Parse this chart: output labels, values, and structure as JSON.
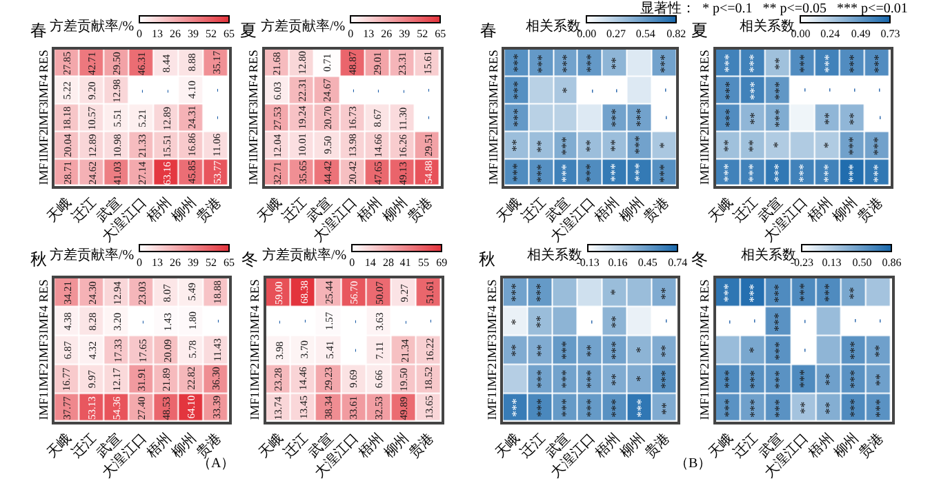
{
  "chart_data": [
    {
      "type": "heatmap",
      "title": "春",
      "clabel": "方差贡献率/%",
      "categories": [
        "天峨",
        "迁江",
        "武宣",
        "大湟江口",
        "梧州",
        "柳州",
        "贵港"
      ],
      "y_categories": [
        "RES",
        "IMF4",
        "IMF3",
        "IMF2",
        "IMF1"
      ],
      "clim": [
        0,
        65
      ],
      "cticks": [
        0,
        13,
        26,
        39,
        52,
        65
      ],
      "cells": [
        [
          27.85,
          42.71,
          29.5,
          46.31,
          8.44,
          8.88,
          35.17
        ],
        [
          5.22,
          9.2,
          12.98,
          null,
          null,
          4.1,
          null
        ],
        [
          18.18,
          10.57,
          5.51,
          5.21,
          12.89,
          24.31,
          null
        ],
        [
          20.04,
          12.89,
          10.98,
          21.33,
          15.51,
          16.86,
          11.06
        ],
        [
          28.71,
          24.62,
          41.03,
          27.14,
          63.16,
          45.85,
          53.77
        ]
      ],
      "cell_labels": [
        [
          "27.85",
          "42.71",
          "29.50",
          "46.31",
          "8.44",
          "8.88",
          "35.17"
        ],
        [
          "5.22",
          "9.20",
          "12.98",
          "-",
          "-",
          "4.10",
          "-"
        ],
        [
          "18.18",
          "10.57",
          "5.51",
          "5.21",
          "12.89",
          "24.31",
          "-"
        ],
        [
          "20.04",
          "12.89",
          "10.98",
          "21.33",
          "15.51",
          "16.86",
          "11.06"
        ],
        [
          "28.71",
          "24.62",
          "41.03",
          "27.14",
          "63.16",
          "45.85",
          "53.77"
        ]
      ]
    },
    {
      "type": "heatmap",
      "title": "夏",
      "clabel": "方差贡献率/%",
      "categories": [
        "天峨",
        "迁江",
        "武宣",
        "大湟江口",
        "梧州",
        "柳州",
        "贵港"
      ],
      "y_categories": [
        "RES",
        "IMF4",
        "IMF3",
        "IMF2",
        "IMF1"
      ],
      "clim": [
        0,
        65
      ],
      "cticks": [
        0,
        13,
        26,
        39,
        52,
        65
      ],
      "cells": [
        [
          21.68,
          12.8,
          0.71,
          48.87,
          29.01,
          23.31,
          15.61
        ],
        [
          6.03,
          22.31,
          24.67,
          null,
          null,
          null,
          null
        ],
        [
          27.53,
          19.24,
          20.7,
          16.73,
          8.67,
          11.3,
          null
        ],
        [
          12.04,
          10.01,
          9.5,
          13.98,
          14.66,
          16.26,
          29.51
        ],
        [
          32.71,
          35.65,
          44.42,
          20.42,
          47.65,
          49.13,
          54.88
        ]
      ],
      "cell_labels": [
        [
          "21.68",
          "12.80",
          "0.71",
          "48.87",
          "29.01",
          "23.31",
          "15.61"
        ],
        [
          "6.03",
          "22.31",
          "24.67",
          "-",
          "-",
          "-",
          "-"
        ],
        [
          "27.53",
          "19.24",
          "20.70",
          "16.73",
          "8.67",
          "11.30",
          "-"
        ],
        [
          "12.04",
          "10.01",
          "9.50",
          "13.98",
          "14.66",
          "16.26",
          "29.51"
        ],
        [
          "32.71",
          "35.65",
          "44.42",
          "20.42",
          "47.65",
          "49.13",
          "54.88"
        ]
      ]
    },
    {
      "type": "heatmap",
      "title": "春",
      "clabel": "相关系数",
      "categories": [
        "天峨",
        "迁江",
        "武宣",
        "大湟江口",
        "梧州",
        "柳州",
        "贵港"
      ],
      "y_categories": [
        "RES",
        "IMF4",
        "IMF3",
        "IMF2",
        "IMF1"
      ],
      "clim": [
        0,
        0.82
      ],
      "cticks": [
        {
          "value": 0,
          "label": "0.00"
        },
        {
          "value": 0.27,
          "label": "0.27"
        },
        {
          "value": 0.54,
          "label": "0.54"
        },
        {
          "value": 0.82,
          "label": "0.82"
        }
      ],
      "cells": [
        [
          0.6,
          0.55,
          0.5,
          0.55,
          0.4,
          0.12,
          0.5
        ],
        [
          0.6,
          0.25,
          0.3,
          null,
          null,
          0.12,
          null
        ],
        [
          0.55,
          0.25,
          0.25,
          0.12,
          0.5,
          0.5,
          null
        ],
        [
          0.35,
          0.35,
          0.45,
          0.35,
          0.35,
          0.5,
          0.3
        ],
        [
          0.62,
          0.6,
          0.68,
          0.62,
          0.72,
          0.72,
          0.6
        ]
      ],
      "cell_labels": [
        [
          "***",
          "***",
          "***",
          "***",
          "**",
          null,
          "***"
        ],
        [
          "***",
          null,
          "*",
          "-",
          "-",
          null,
          "-"
        ],
        [
          "***",
          null,
          null,
          null,
          "***",
          "***",
          "-"
        ],
        [
          "**",
          "**",
          "***",
          "**",
          "**",
          "***",
          "*"
        ],
        [
          "***",
          "***",
          "***",
          "***",
          "***",
          "***",
          "***"
        ]
      ]
    },
    {
      "type": "heatmap",
      "title": "夏",
      "clabel": "相关系数",
      "categories": [
        "天峨",
        "迁江",
        "武宣",
        "大湟江口",
        "梧州",
        "柳州",
        "贵港"
      ],
      "y_categories": [
        "RES",
        "IMF4",
        "IMF3",
        "IMF2",
        "IMF1"
      ],
      "clim": [
        0,
        0.73
      ],
      "cticks": [
        {
          "value": 0,
          "label": "0.00"
        },
        {
          "value": 0.24,
          "label": "0.24"
        },
        {
          "value": 0.49,
          "label": "0.49"
        },
        {
          "value": 0.73,
          "label": "0.73"
        }
      ],
      "cells": [
        [
          0.6,
          0.6,
          0.3,
          0.55,
          0.6,
          0.55,
          0.55
        ],
        [
          0.55,
          0.6,
          0.5,
          null,
          null,
          null,
          null
        ],
        [
          0.55,
          0.35,
          0.4,
          0.05,
          0.35,
          0.35,
          null
        ],
        [
          0.3,
          0.3,
          0.25,
          0.25,
          0.25,
          0.45,
          0.45
        ],
        [
          0.6,
          0.6,
          0.65,
          0.6,
          0.6,
          0.7,
          0.65
        ]
      ],
      "cell_labels": [
        [
          "***",
          "***",
          "**",
          "***",
          "***",
          "***",
          "***"
        ],
        [
          "***",
          "***",
          "***",
          "-",
          "-",
          "-",
          "-"
        ],
        [
          "***",
          "**",
          "***",
          null,
          "**",
          "**",
          "-"
        ],
        [
          "**",
          "**",
          "*",
          null,
          "*",
          "***",
          "***"
        ],
        [
          "***",
          "***",
          "***",
          "***",
          "***",
          "***",
          "***"
        ]
      ],
      "annotations": [
        "显著性：  * p<=0.1   ** p<=0.05   *** p<=0.01"
      ]
    },
    {
      "type": "heatmap",
      "title": "秋",
      "clabel": "方差贡献率/%",
      "categories": [
        "天峨",
        "迁江",
        "武宣",
        "大湟江口",
        "梧州",
        "柳州",
        "贵港"
      ],
      "y_categories": [
        "RES",
        "IMF4",
        "IMF3",
        "IMF2",
        "IMF1"
      ],
      "clim": [
        0,
        65
      ],
      "cticks": [
        0,
        13,
        26,
        39,
        52,
        65
      ],
      "cells": [
        [
          34.21,
          24.3,
          12.94,
          23.03,
          8.07,
          5.49,
          18.88
        ],
        [
          4.38,
          8.28,
          3.2,
          null,
          1.43,
          1.8,
          null
        ],
        [
          6.87,
          4.32,
          17.33,
          17.65,
          20.09,
          5.78,
          11.43
        ],
        [
          16.77,
          9.97,
          12.17,
          31.91,
          21.89,
          22.82,
          36.3
        ],
        [
          37.77,
          53.13,
          54.36,
          27.4,
          48.53,
          64.1,
          33.39
        ]
      ],
      "cell_labels": [
        [
          "34.21",
          "24.30",
          "12.94",
          "23.03",
          "8.07",
          "5.49",
          "18.88"
        ],
        [
          "4.38",
          "8.28",
          "3.20",
          "-",
          "1.43",
          "1.80",
          "-"
        ],
        [
          "6.87",
          "4.32",
          "17.33",
          "17.65",
          "20.09",
          "5.78",
          "11.43"
        ],
        [
          "16.77",
          "9.97",
          "12.17",
          "31.91",
          "21.89",
          "22.82",
          "36.30"
        ],
        [
          "37.77",
          "53.13",
          "54.36",
          "27.40",
          "48.53",
          "64.10",
          "33.39"
        ]
      ],
      "annotations": [
        "（A）"
      ]
    },
    {
      "type": "heatmap",
      "title": "冬",
      "clabel": "方差贡献率/%",
      "categories": [
        "天峨",
        "迁江",
        "武宣",
        "大湟江口",
        "梧州",
        "柳州",
        "贵港"
      ],
      "y_categories": [
        "RES",
        "IMF4",
        "IMF3",
        "IMF2",
        "IMF1"
      ],
      "clim": [
        0,
        69
      ],
      "cticks": [
        0,
        14,
        28,
        41,
        55,
        69
      ],
      "cells": [
        [
          59.0,
          68.38,
          25.44,
          56.7,
          50.07,
          9.27,
          51.61
        ],
        [
          null,
          null,
          1.57,
          null,
          3.63,
          null,
          null
        ],
        [
          3.98,
          3.7,
          5.41,
          null,
          7.11,
          21.34,
          16.22
        ],
        [
          23.28,
          14.46,
          29.23,
          9.69,
          6.66,
          19.5,
          18.52
        ],
        [
          13.74,
          13.45,
          38.34,
          33.61,
          32.53,
          49.89,
          13.65
        ]
      ],
      "cell_labels": [
        [
          "59.00",
          "68.38",
          "25.44",
          "56.70",
          "50.07",
          "9.27",
          "51.61"
        ],
        [
          "-",
          "-",
          "1.57",
          "-",
          "3.63",
          "-",
          "-"
        ],
        [
          "3.98",
          "3.70",
          "5.41",
          "-",
          "7.11",
          "21.34",
          "16.22"
        ],
        [
          "23.28",
          "14.46",
          "29.23",
          "9.69",
          "6.66",
          "19.50",
          "18.52"
        ],
        [
          "13.74",
          "13.45",
          "38.34",
          "33.61",
          "32.53",
          "49.89",
          "13.65"
        ]
      ]
    },
    {
      "type": "heatmap",
      "title": "秋",
      "clabel": "相关系数",
      "categories": [
        "天峨",
        "迁江",
        "武宣",
        "大湟江口",
        "梧州",
        "柳州",
        "贵港"
      ],
      "y_categories": [
        "RES",
        "IMF4",
        "IMF3",
        "IMF2",
        "IMF1"
      ],
      "clim": [
        -0.13,
        0.74
      ],
      "cticks": [
        -0.13,
        0.16,
        0.45,
        0.74
      ],
      "cells": [
        [
          0.4,
          0.45,
          0.25,
          0.05,
          0.25,
          0.25,
          0.35
        ],
        [
          -0.05,
          0.25,
          0.3,
          null,
          0.3,
          -0.05,
          null
        ],
        [
          0.35,
          0.35,
          0.45,
          0.4,
          0.4,
          0.3,
          0.35
        ],
        [
          0.15,
          0.4,
          0.4,
          0.4,
          0.35,
          0.35,
          0.5
        ],
        [
          0.62,
          0.55,
          0.45,
          0.45,
          0.5,
          0.65,
          0.35
        ]
      ],
      "cell_labels": [
        [
          "***",
          "***",
          null,
          null,
          "*",
          null,
          "**"
        ],
        [
          "*",
          "**",
          null,
          "-",
          "**",
          null,
          "-"
        ],
        [
          "**",
          "**",
          "***",
          "**",
          "***",
          "*",
          "**"
        ],
        [
          null,
          "***",
          "***",
          "***",
          "**",
          "*",
          "***"
        ],
        [
          "***",
          "***",
          "***",
          "***",
          "***",
          "***",
          "**"
        ]
      ],
      "annotations": [
        "（B）"
      ]
    },
    {
      "type": "heatmap",
      "title": "冬",
      "clabel": "相关系数",
      "categories": [
        "天峨",
        "迁江",
        "武宣",
        "大湟江口",
        "梧州",
        "柳州",
        "贵港"
      ],
      "y_categories": [
        "RES",
        "IMF4",
        "IMF3",
        "IMF2",
        "IMF1"
      ],
      "clim": [
        -0.23,
        0.86
      ],
      "cticks": [
        {
          "value": -0.23,
          "label": "-0.23"
        },
        {
          "value": 0.13,
          "label": "0.13"
        },
        {
          "value": 0.5,
          "label": "0.50"
        },
        {
          "value": 0.86,
          "label": "0.86"
        }
      ],
      "cells": [
        [
          0.75,
          0.8,
          0.6,
          0.6,
          0.6,
          0.4,
          0.2
        ],
        [
          null,
          null,
          0.55,
          null,
          0.25,
          null,
          null
        ],
        [
          0.25,
          0.4,
          0.55,
          null,
          0.3,
          0.55,
          0.45
        ],
        [
          0.6,
          0.55,
          0.55,
          0.6,
          0.45,
          0.55,
          0.45
        ],
        [
          0.55,
          0.45,
          0.55,
          0.2,
          0.35,
          0.6,
          0.55
        ]
      ],
      "cell_labels": [
        [
          "***",
          "***",
          "***",
          "***",
          "***",
          "**",
          null
        ],
        [
          "-",
          "-",
          "***",
          "-",
          null,
          "-",
          "-"
        ],
        [
          null,
          "*",
          "***",
          "-",
          null,
          "***",
          "**"
        ],
        [
          "***",
          "***",
          "***",
          "***",
          "**",
          "***",
          "**"
        ],
        [
          "***",
          "***",
          "***",
          "**",
          "**",
          "***",
          "***"
        ]
      ]
    }
  ]
}
